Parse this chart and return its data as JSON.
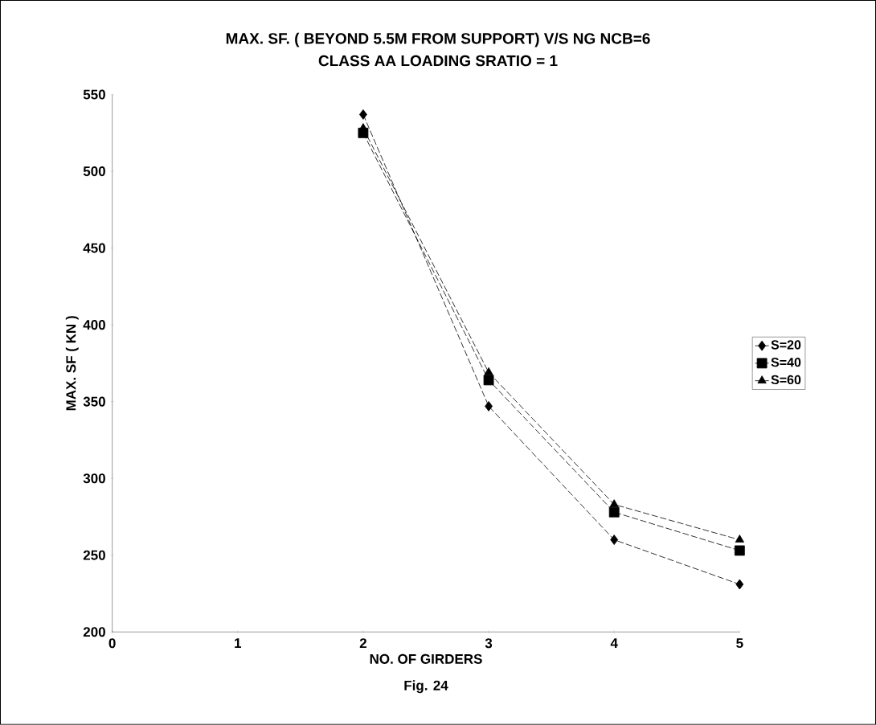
{
  "chart_data": {
    "type": "line",
    "title": "MAX. SF. ( BEYOND 5.5M FROM SUPPORT) V/S NG  NCB=6",
    "subtitle": "CLASS  AA  LOADING SRATIO = 1",
    "xlabel": "NO. OF GIRDERS",
    "ylabel": "MAX. SF ( KN )",
    "annotations": [
      "Fig. 24"
    ],
    "x": [
      2,
      3,
      4,
      5
    ],
    "series": [
      {
        "name": "S=20",
        "color": "#000000",
        "marker": "diamond",
        "values": [
          537,
          347,
          260,
          231
        ]
      },
      {
        "name": "S=40",
        "color": "#000000",
        "marker": "square",
        "values": [
          525,
          364,
          278,
          253
        ]
      },
      {
        "name": "S=60",
        "color": "#000000",
        "marker": "triangle",
        "values": [
          528,
          369,
          283,
          260
        ]
      }
    ],
    "xlim": [
      0,
      5
    ],
    "xticks": [
      0,
      1,
      2,
      3,
      4,
      5
    ],
    "ylim": [
      200,
      550
    ],
    "yticks": [
      200,
      250,
      300,
      350,
      400,
      450,
      500,
      550
    ],
    "grid": false,
    "legend": "right",
    "line_style": "dashed"
  }
}
